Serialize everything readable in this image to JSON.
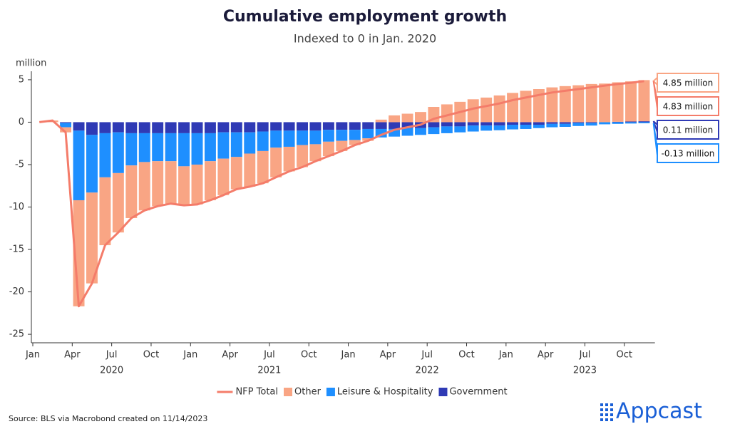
{
  "chart_data": {
    "type": "stacked_bar_line",
    "title": "Cumulative employment growth",
    "subtitle": "Indexed to 0 in Jan. 2020",
    "y_unit": "million",
    "categories": [
      "2020-01",
      "2020-02",
      "2020-03",
      "2020-04",
      "2020-05",
      "2020-06",
      "2020-07",
      "2020-08",
      "2020-09",
      "2020-10",
      "2020-11",
      "2020-12",
      "2021-01",
      "2021-02",
      "2021-03",
      "2021-04",
      "2021-05",
      "2021-06",
      "2021-07",
      "2021-08",
      "2021-09",
      "2021-10",
      "2021-11",
      "2021-12",
      "2022-01",
      "2022-02",
      "2022-03",
      "2022-04",
      "2022-05",
      "2022-06",
      "2022-07",
      "2022-08",
      "2022-09",
      "2022-10",
      "2022-11",
      "2022-12",
      "2023-01",
      "2023-02",
      "2023-03",
      "2023-04",
      "2023-05",
      "2023-06",
      "2023-07",
      "2023-08",
      "2023-09",
      "2023-10",
      "2023-11"
    ],
    "series": [
      {
        "name": "NFP Total",
        "kind": "line",
        "color": "#f47c6a",
        "end_label": "4.83 million",
        "values": [
          0,
          0.2,
          -1.2,
          -21.7,
          -19.0,
          -14.5,
          -13.0,
          -11.3,
          -10.4,
          -9.9,
          -9.6,
          -9.8,
          -9.7,
          -9.2,
          -8.6,
          -7.9,
          -7.6,
          -7.2,
          -6.5,
          -5.8,
          -5.3,
          -4.6,
          -4.0,
          -3.4,
          -2.7,
          -2.2,
          -1.5,
          -0.9,
          -0.6,
          -0.3,
          0.4,
          0.8,
          1.2,
          1.6,
          1.9,
          2.2,
          2.6,
          2.9,
          3.2,
          3.5,
          3.7,
          3.9,
          4.1,
          4.3,
          4.5,
          4.65,
          4.83
        ]
      },
      {
        "name": "Other",
        "kind": "bar",
        "color": "#f9a584",
        "end_label": "4.85 million",
        "values": [
          0,
          0.2,
          -0.6,
          -12.5,
          -10.7,
          -8.0,
          -7.0,
          -6.2,
          -5.7,
          -5.3,
          -5.0,
          -4.6,
          -4.7,
          -4.6,
          -4.3,
          -3.8,
          -3.9,
          -3.8,
          -3.5,
          -2.9,
          -2.6,
          -2.0,
          -1.7,
          -1.2,
          -0.6,
          -0.3,
          0.3,
          0.8,
          1.0,
          1.2,
          1.8,
          2.1,
          2.4,
          2.7,
          2.9,
          3.15,
          3.45,
          3.7,
          3.9,
          4.1,
          4.25,
          4.35,
          4.5,
          4.55,
          4.65,
          4.73,
          4.85
        ]
      },
      {
        "name": "Leisure & Hospitality",
        "kind": "bar",
        "color": "#1e8fff",
        "end_label": "-0.13 million",
        "values": [
          0,
          0,
          -0.5,
          -8.2,
          -6.8,
          -5.2,
          -4.8,
          -3.8,
          -3.4,
          -3.3,
          -3.3,
          -3.9,
          -3.7,
          -3.3,
          -3.1,
          -2.9,
          -2.5,
          -2.3,
          -2.0,
          -1.9,
          -1.7,
          -1.6,
          -1.4,
          -1.3,
          -1.2,
          -1.1,
          -1.0,
          -0.9,
          -0.9,
          -0.8,
          -0.8,
          -0.8,
          -0.7,
          -0.7,
          -0.6,
          -0.55,
          -0.55,
          -0.5,
          -0.4,
          -0.4,
          -0.35,
          -0.35,
          -0.3,
          -0.25,
          -0.2,
          -0.16,
          -0.13
        ]
      },
      {
        "name": "Government",
        "kind": "bar",
        "color": "#2f3ab5",
        "end_label": "0.11 million",
        "values": [
          0,
          0,
          -0.1,
          -1.0,
          -1.5,
          -1.3,
          -1.2,
          -1.3,
          -1.3,
          -1.3,
          -1.3,
          -1.3,
          -1.3,
          -1.3,
          -1.2,
          -1.2,
          -1.2,
          -1.1,
          -1.0,
          -1.0,
          -1.0,
          -1.0,
          -0.9,
          -0.9,
          -0.9,
          -0.8,
          -0.8,
          -0.8,
          -0.7,
          -0.7,
          -0.6,
          -0.5,
          -0.5,
          -0.4,
          -0.4,
          -0.4,
          -0.3,
          -0.3,
          -0.3,
          -0.2,
          -0.2,
          -0.1,
          -0.1,
          0,
          0.05,
          0.08,
          0.11
        ]
      }
    ],
    "ylim": [
      -26,
      6
    ],
    "yticks": [
      5,
      0,
      -5,
      -10,
      -15,
      -20,
      -25
    ],
    "xticks": [
      {
        "value": "2020-01",
        "label": "Jan"
      },
      {
        "value": "2020-04",
        "label": "Apr"
      },
      {
        "value": "2020-07",
        "label": "Jul"
      },
      {
        "value": "2020-10",
        "label": "Oct"
      },
      {
        "value": "2021-01",
        "label": "Jan"
      },
      {
        "value": "2021-04",
        "label": "Apr"
      },
      {
        "value": "2021-07",
        "label": "Jul"
      },
      {
        "value": "2021-10",
        "label": "Oct"
      },
      {
        "value": "2022-01",
        "label": "Jan"
      },
      {
        "value": "2022-04",
        "label": "Apr"
      },
      {
        "value": "2022-07",
        "label": "Jul"
      },
      {
        "value": "2022-10",
        "label": "Oct"
      },
      {
        "value": "2023-01",
        "label": "Jan"
      },
      {
        "value": "2023-04",
        "label": "Apr"
      },
      {
        "value": "2023-07",
        "label": "Jul"
      },
      {
        "value": "2023-10",
        "label": "Oct"
      }
    ],
    "year_labels": [
      {
        "value": "2020-07",
        "label": "2020"
      },
      {
        "value": "2021-07",
        "label": "2021"
      },
      {
        "value": "2022-07",
        "label": "2022"
      },
      {
        "value": "2023-07",
        "label": "2023"
      }
    ],
    "legend": "bottom",
    "source": "Source: BLS via Macrobond created on 11/14/2023",
    "logo": "Appcast"
  }
}
